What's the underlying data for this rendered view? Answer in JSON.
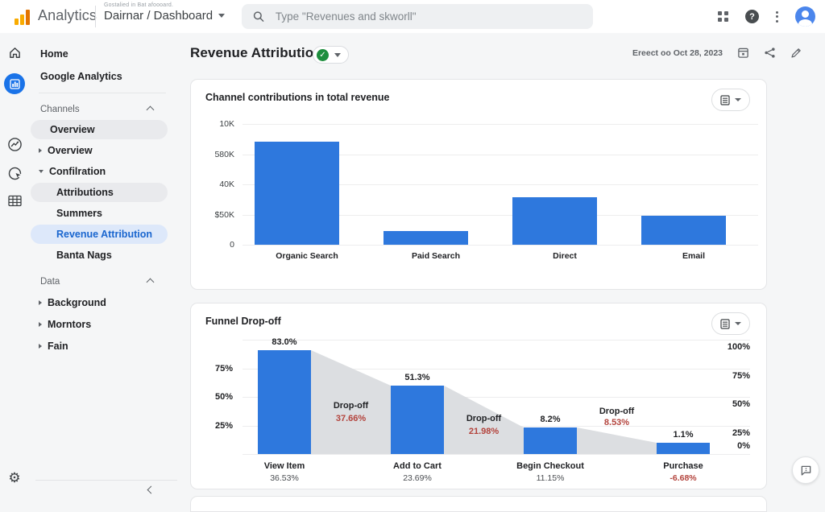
{
  "accents": {
    "bar_blue": "#2e78dd",
    "active_blue": "#1a73e8",
    "pill_blue_bg": "#dde8fa",
    "pill_blue_text": "#1a66cf",
    "green_check": "#1e8e3e",
    "dropoff_red": "#b3433c",
    "logo_orange": "#f9ab00"
  },
  "topbar": {
    "brand": "Analytics",
    "property": {
      "subtitle": "Gostalied in Bat afoooard.",
      "name": "Dairnar / Dashboard"
    },
    "search": {
      "placeholder": "Type \"Revenues and skworll\""
    },
    "action_icons": [
      "apps-grid-icon",
      "help-icon",
      "more-vertical-icon",
      "avatar"
    ]
  },
  "rail": {
    "icons": [
      "home-icon",
      "reports-icon-active",
      "explore-icon",
      "advertising-icon",
      "library-icon"
    ],
    "bottom_icon": "settings-gear-icon"
  },
  "sidebar": {
    "items": [
      {
        "label": "Home",
        "kind": "root"
      },
      {
        "label": "Google Analytics",
        "kind": "root"
      },
      {
        "kind": "divider"
      },
      {
        "label": "Channels",
        "kind": "section",
        "chevron": "up"
      },
      {
        "label": "Overview",
        "kind": "pill"
      },
      {
        "label": "Overview",
        "kind": "item",
        "arrow": "right"
      },
      {
        "label": "Confilration",
        "kind": "item",
        "arrow": "down"
      },
      {
        "label": "Attributions",
        "kind": "pill",
        "indent": true
      },
      {
        "label": "Summers",
        "kind": "item2"
      },
      {
        "label": "Revenue Attribution",
        "kind": "pill",
        "indent": true,
        "active": true
      },
      {
        "label": "Banta Nags",
        "kind": "item2"
      },
      {
        "label": "Data",
        "kind": "section",
        "chevron": "up",
        "gap": true
      },
      {
        "label": "Background",
        "kind": "item",
        "arrow": "right",
        "tall": true
      },
      {
        "label": "Morntors",
        "kind": "item",
        "arrow": "right",
        "tall": true
      },
      {
        "label": "Fain",
        "kind": "item",
        "arrow": "right",
        "tall": true
      }
    ]
  },
  "page_header": {
    "title": "Revenue Attribution",
    "date_text": "Ereect oo Oct 28, 2023",
    "icons": [
      "calendar-icon",
      "share-icon",
      "edit-pencil-icon"
    ]
  },
  "chart_data": [
    {
      "type": "bar",
      "title": "Channel contributions in total revenue",
      "categories": [
        "Organic Search",
        "Paid Search",
        "Direct",
        "Email"
      ],
      "y_tick_labels_top_to_bottom": [
        "10K",
        "580K",
        "40K",
        "$50K",
        "0"
      ],
      "values_pct_of_axis_top": [
        85,
        11,
        39,
        24
      ],
      "bar_color": "#2e78dd",
      "grid": true,
      "legend": "none"
    },
    {
      "type": "funnel-bar",
      "title": "Funnel Drop-off",
      "stages": [
        {
          "label": "View Item",
          "value_label": "83.0%",
          "value": 83.0,
          "sub_label": "36.53%",
          "sub_value": 36.53,
          "render_pct": 91
        },
        {
          "label": "Add to Cart",
          "value_label": "51.3%",
          "value": 51.3,
          "sub_label": "23.69%",
          "sub_value": 23.69,
          "render_pct": 60
        },
        {
          "label": "Begin Checkout",
          "value_label": "8.2%",
          "value": 8.2,
          "sub_label": "11.15%",
          "sub_value": 11.15,
          "render_pct": 23
        },
        {
          "label": "Purchase",
          "value_label": "1.1%",
          "value": 1.1,
          "sub_label": "-6.68%",
          "sub_value": -6.68,
          "sub_red": true,
          "render_pct": 10
        }
      ],
      "dropoffs": [
        {
          "label": "Drop-off",
          "value_label": "37.66%",
          "value": 37.66
        },
        {
          "label": "Drop-off",
          "value_label": "21.98%",
          "value": 21.98
        },
        {
          "label": "Drop-off",
          "value_label": "8.53%",
          "value": 8.53
        }
      ],
      "left_ticks": [
        "75%",
        "50%",
        "25%"
      ],
      "right_ticks": [
        "100%",
        "75%",
        "50%",
        "25%",
        "0%"
      ],
      "bar_color": "#2e78dd",
      "connector_color": "#dcdee1",
      "grid": true
    }
  ],
  "fab": {
    "icon": "feedback-chat-icon"
  }
}
